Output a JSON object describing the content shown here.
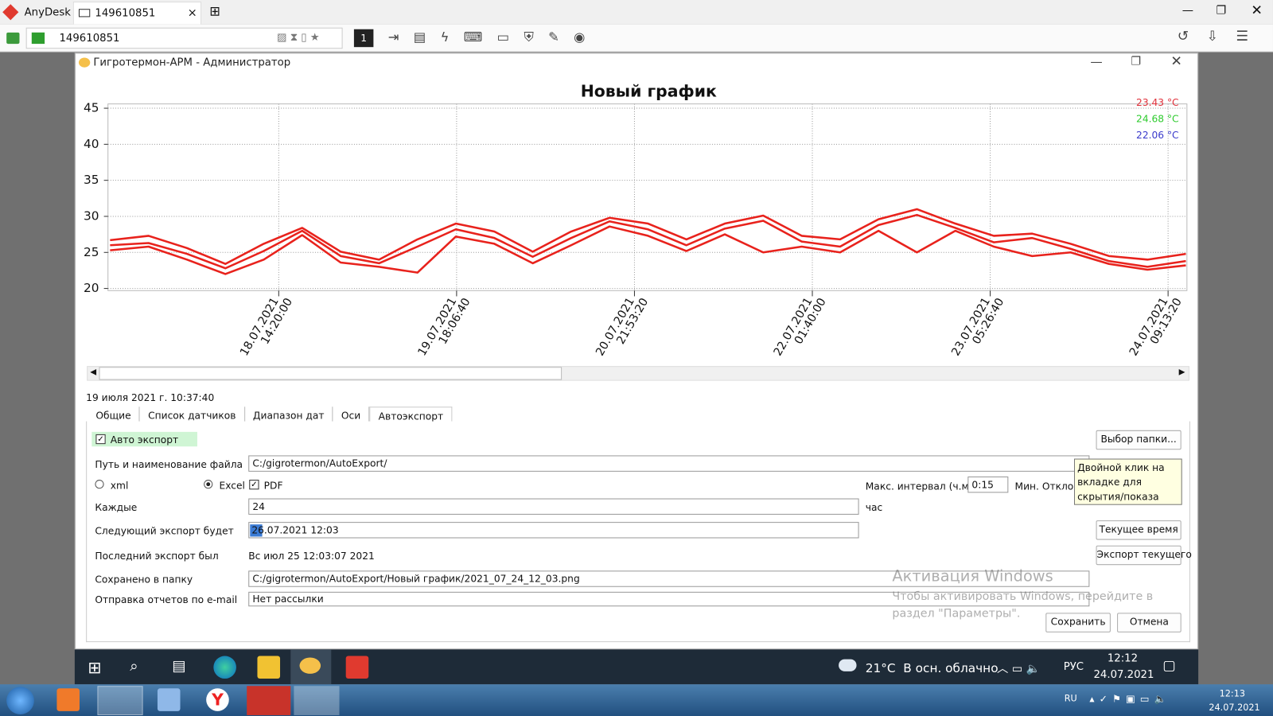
{
  "anydesk": {
    "app": "AnyDesk",
    "tab": "149610851",
    "address": "149610851"
  },
  "window": {
    "title": "Гигротермон-АРМ - Администратор"
  },
  "chart_data": {
    "type": "line",
    "title": "Новый график",
    "x": [
      "17.07.2021 12:00",
      "17.07.2021 18:00",
      "18.07.2021 00:00",
      "18.07.2021 06:00",
      "18.07.2021 12:00",
      "18.07.2021 18:00",
      "19.07.2021 00:00",
      "19.07.2021 06:00",
      "19.07.2021 12:00",
      "19.07.2021 18:00",
      "20.07.2021 00:00",
      "20.07.2021 06:00",
      "20.07.2021 12:00",
      "20.07.2021 18:00",
      "21.07.2021 00:00",
      "21.07.2021 06:00",
      "21.07.2021 12:00",
      "21.07.2021 18:00",
      "22.07.2021 00:00",
      "22.07.2021 06:00",
      "22.07.2021 12:00",
      "22.07.2021 18:00",
      "23.07.2021 00:00",
      "23.07.2021 06:00",
      "23.07.2021 12:00",
      "23.07.2021 18:00",
      "24.07.2021 00:00",
      "24.07.2021 06:00",
      "24.07.2021 12:00"
    ],
    "series": [
      {
        "name": "23.43 °C",
        "color": "#e8221c",
        "label_color": "#e0303a",
        "values": [
          26.7,
          27.3,
          25.6,
          23.4,
          26.2,
          28.4,
          25.1,
          24.0,
          26.8,
          29.0,
          27.9,
          25.1,
          27.9,
          29.8,
          29.0,
          26.8,
          29.0,
          30.1,
          27.3,
          26.8,
          29.6,
          31.0,
          29.0,
          27.3,
          27.6,
          26.2,
          24.5,
          24.0,
          24.8
        ]
      },
      {
        "name": "24.68 °C",
        "color": "#e8221c",
        "label_color": "#2ecb2e",
        "values": [
          26.0,
          26.3,
          24.8,
          22.8,
          25.2,
          28.0,
          24.5,
          23.5,
          25.8,
          28.2,
          27.0,
          24.4,
          27.0,
          29.3,
          28.2,
          26.0,
          28.3,
          29.4,
          26.5,
          25.8,
          28.8,
          30.2,
          28.4,
          26.4,
          27.0,
          25.5,
          23.8,
          23.0,
          23.8
        ]
      },
      {
        "name": "22.06 °C",
        "color": "#e8221c",
        "label_color": "#3a3acb",
        "values": [
          25.3,
          25.8,
          24.0,
          22.0,
          24.0,
          27.4,
          23.6,
          23.0,
          22.2,
          27.2,
          26.2,
          23.5,
          26.0,
          28.6,
          27.3,
          25.2,
          27.5,
          25.0,
          25.8,
          25.0,
          28.0,
          25.0,
          28.0,
          25.8,
          24.5,
          25.0,
          23.4,
          22.6,
          23.2
        ]
      }
    ],
    "xlim": [
      "17.07.2021 11:40",
      "24.07.2021 12:10"
    ],
    "xticks": [
      "18.07.2021 14:20:00",
      "19.07.2021 18:06:40",
      "20.07.2021 21:53:20",
      "22.07.2021 01:40:00",
      "23.07.2021 05:26:40",
      "24.07.2021 09:13:20"
    ],
    "ylim": [
      19.7,
      45.6
    ],
    "yticks": [
      20,
      25,
      30,
      35,
      40,
      45
    ],
    "grid": true
  },
  "status": "19 июля 2021 г. 10:37:40",
  "tabs": [
    "Общие",
    "Список датчиков",
    "Диапазон дат",
    "Оси",
    "Автоэкспорт"
  ],
  "form": {
    "auto_export": "Авто экспорт",
    "choose_folder": "Выбор папки...",
    "path_label": "Путь и наименование файла",
    "path_value": "C:/gigrotermon/AutoExport/",
    "format_xml": "xml",
    "format_excel": "Excel",
    "format_pdf": "PDF",
    "max_interval_label": "Макс. интервал (ч.мм)",
    "max_interval_value": "0:15",
    "min_deviation_label": "Мин. Отклоне",
    "every_label": "Каждые",
    "every_value": "24",
    "every_unit": "час",
    "next_label": "Следующий экспорт будет",
    "next_value": "26.07.2021 12:03",
    "current_time": "Текущее время",
    "last_label": "Последний экспорт был",
    "last_value": "Вс июл 25 12:03:07 2021",
    "export_current": "Экспорт текущего",
    "saved_label": "Сохранено в папку",
    "saved_value": "C:/gigrotermon/AutoExport/Новый график/2021_07_24_12_03.png",
    "email_label": "Отправка отчетов по e-mail",
    "email_value": "Нет рассылки",
    "save": "Сохранить",
    "cancel": "Отмена"
  },
  "tooltip": "Двойной клик на вкладке для скрытия/показа",
  "watermark": {
    "title": "Активация Windows",
    "text": "Чтобы активировать Windows, перейдите в раздел \"Параметры\"."
  },
  "taskbar_remote": {
    "weather": "21°C  В осн. облачно",
    "lang": "РУС",
    "time": "12:12",
    "date": "24.07.2021"
  },
  "taskbar_local": {
    "lang": "RU",
    "time": "12:13",
    "date": "24.07.2021"
  }
}
